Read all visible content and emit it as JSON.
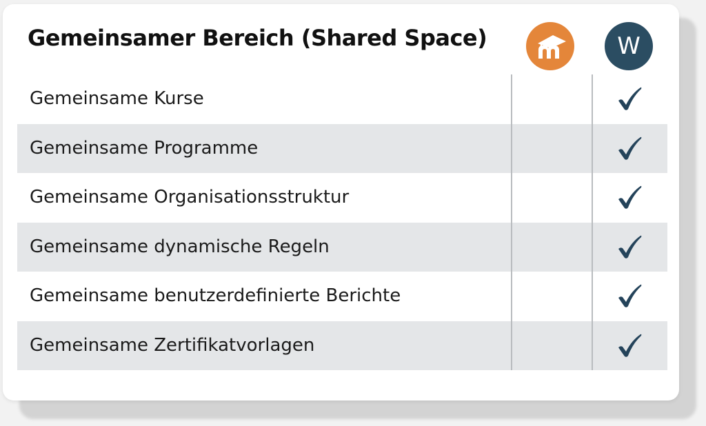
{
  "title": "Gemeinsamer Bereich (Shared Space)",
  "columns": [
    {
      "icon": "moodle-logo-icon",
      "color": "#e4863a"
    },
    {
      "icon": "workplace-logo-icon",
      "letter": "W",
      "color": "#2b4d62"
    }
  ],
  "rows": [
    {
      "label": "Gemeinsame Kurse",
      "moodle": false,
      "workplace": true
    },
    {
      "label": "Gemeinsame Programme",
      "moodle": false,
      "workplace": true
    },
    {
      "label": "Gemeinsame Organisationsstruktur",
      "moodle": false,
      "workplace": true
    },
    {
      "label": "Gemeinsame dynamische Regeln",
      "moodle": false,
      "workplace": true
    },
    {
      "label": "Gemeinsame benutzerdefinierte Berichte",
      "moodle": false,
      "workplace": true
    },
    {
      "label": "Gemeinsame Zertifikatvorlagen",
      "moodle": false,
      "workplace": true
    }
  ],
  "check_color": "#24435a"
}
